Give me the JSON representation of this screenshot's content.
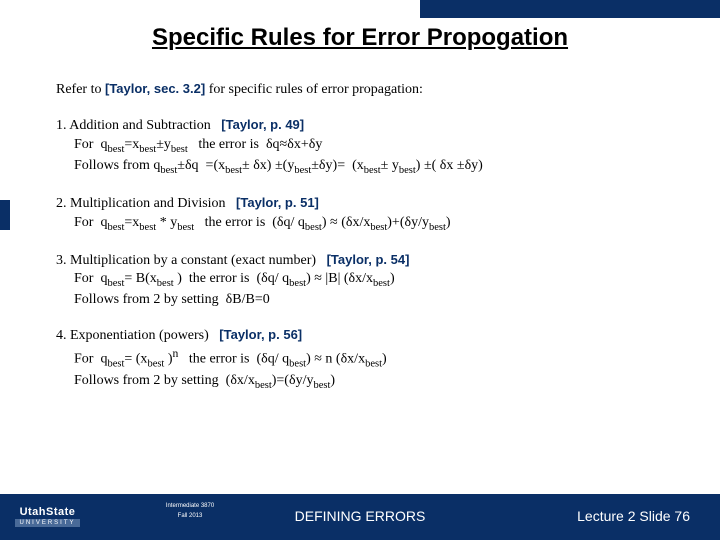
{
  "colors": {
    "brand": "#0a2f66",
    "text": "#000000",
    "footer_text": "#ffffff",
    "background": "#ffffff",
    "logo_sub_bg": "#496a98"
  },
  "typography": {
    "title_fontsize": 24,
    "body_fontsize": 14,
    "ref_fontsize": 13,
    "footer_center_fontsize": 14,
    "footer_course_fontsize": 6,
    "logo_main_fontsize": 11,
    "logo_sub_fontsize": 6
  },
  "title": "Specific Rules for Error Propogation",
  "intro_prefix": "Refer to  ",
  "intro_ref": "[Taylor, sec. 3.2]",
  "intro_suffix": " for specific rules of error propagation:",
  "rules": [
    {
      "num": "1.",
      "name": "Addition and Subtraction",
      "ref": "[Taylor, p. 49]",
      "line_for": "For  q_best = x_best ± y_best   the error is  δq ≈ δx + δy",
      "line_follow": "Follows from q_best ± δq  = (x_best ± δx) ± (y_best ± δy) =  (x_best ± y_best) ± ( δx ± δy)"
    },
    {
      "num": "2.",
      "name": "Multiplication and Division",
      "ref": "[Taylor, p. 51]",
      "line_for": "For  q_best = x_best * y_best   the error is  (δq / q_best) ≈ (δx/x_best) + (δy/y_best)",
      "line_follow": ""
    },
    {
      "num": "3.",
      "name": "Multiplication by a constant (exact number)",
      "ref": "[Taylor, p. 54]",
      "line_for": "For  q_best = B(x_best)   the error is  (δq / q_best) ≈ |B| (δx/x_best)",
      "line_follow": "Follows from 2 by setting  δB/B = 0"
    },
    {
      "num": "4.",
      "name": "Exponentiation  (powers)",
      "ref": "[Taylor, p. 56]",
      "line_for": "For  q_best = (x_best)ⁿ   the error is  (δq / q_best) ≈ n (δx/x_best)",
      "line_follow": "Follows from 2 by setting  (δx/x_best) = (δy/y_best)"
    }
  ],
  "footer": {
    "logo_main": "UtahState",
    "logo_sub": "UNIVERSITY",
    "course_line1": "Intermediate 3870",
    "course_line2": "Fall 2013",
    "center": "DEFINING ERRORS",
    "right": "Lecture  2   Slide  76"
  }
}
